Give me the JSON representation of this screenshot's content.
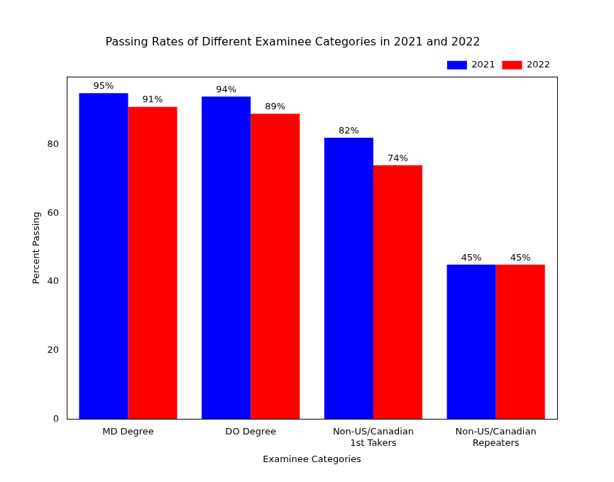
{
  "chart_data": {
    "type": "bar",
    "title": "Passing Rates of Different Examinee Categories in 2021 and 2022",
    "x_label": "Examinee Categories",
    "y_label": "Percent Passing",
    "categories": [
      "MD Degree",
      "DO Degree",
      "Non-US/Canadian\n1st Takers",
      "Non-US/Canadian\nRepeaters"
    ],
    "series": [
      {
        "name": "2021",
        "color": "#0000ff",
        "values": [
          95,
          94,
          82,
          45
        ],
        "value_labels": [
          "95%",
          "94%",
          "82%",
          "45%"
        ]
      },
      {
        "name": "2022",
        "color": "#ff0000",
        "values": [
          91,
          89,
          74,
          45
        ],
        "value_labels": [
          "91%",
          "89%",
          "74%",
          "45%"
        ]
      }
    ],
    "ylim": [
      0,
      99.75
    ],
    "yticks": [
      0,
      20,
      40,
      60,
      80
    ],
    "grid": false,
    "legend": "upper right",
    "data_labels": true
  }
}
